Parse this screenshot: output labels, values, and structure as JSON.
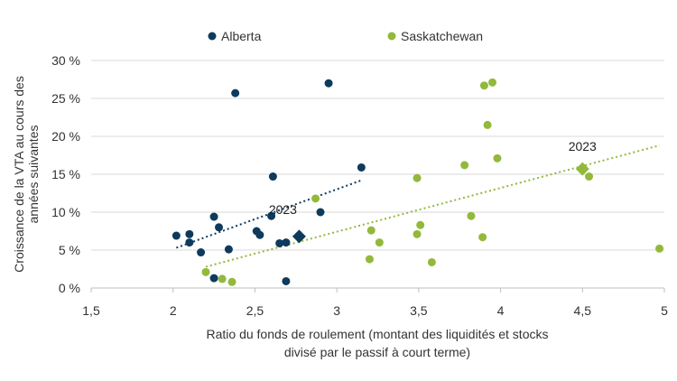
{
  "chart_data": {
    "type": "scatter",
    "xlabel_lines": [
      "Ratio du fonds de roulement (montant des liquidités et stocks",
      "divisé par le passif à court terme)"
    ],
    "ylabel_lines": [
      "Croissance de la VTA au cours des",
      "années suivantes"
    ],
    "xlim": [
      1.5,
      5
    ],
    "ylim": [
      0,
      30
    ],
    "x_ticks": [
      1.5,
      2,
      2.5,
      3,
      3.5,
      4,
      4.5,
      5
    ],
    "x_tick_labels": [
      "1,5",
      "2",
      "2,5",
      "3",
      "3,5",
      "4",
      "4,5",
      "5"
    ],
    "y_ticks": [
      0,
      5,
      10,
      15,
      20,
      25,
      30
    ],
    "y_tick_labels": [
      "0 %",
      "5 %",
      "10 %",
      "15 %",
      "20 %",
      "25 %",
      "30 %"
    ],
    "grid": "horizontal",
    "legend_position": "top",
    "series": [
      {
        "name": "Alberta",
        "color": "#0e3a5c",
        "points": [
          [
            2.02,
            6.9
          ],
          [
            2.1,
            7.1
          ],
          [
            2.1,
            6.0
          ],
          [
            2.17,
            4.7
          ],
          [
            2.25,
            9.4
          ],
          [
            2.28,
            8.0
          ],
          [
            2.25,
            1.3
          ],
          [
            2.34,
            5.1
          ],
          [
            2.38,
            25.7
          ],
          [
            2.51,
            7.5
          ],
          [
            2.53,
            7.0
          ],
          [
            2.6,
            9.5
          ],
          [
            2.61,
            14.7
          ],
          [
            2.65,
            5.9
          ],
          [
            2.69,
            6.0
          ],
          [
            2.69,
            0.9
          ],
          [
            2.9,
            10.0
          ],
          [
            2.95,
            27.0
          ],
          [
            3.15,
            15.9
          ]
        ],
        "highlight": {
          "x": 2.77,
          "y": 6.8,
          "label": "2023"
        },
        "trend": [
          [
            2.02,
            5.3
          ],
          [
            3.15,
            14.2
          ]
        ]
      },
      {
        "name": "Saskatchewan",
        "color": "#92b93b",
        "points": [
          [
            2.2,
            2.1
          ],
          [
            2.3,
            1.2
          ],
          [
            2.36,
            0.8
          ],
          [
            2.87,
            11.8
          ],
          [
            3.2,
            3.8
          ],
          [
            3.21,
            7.6
          ],
          [
            3.26,
            6.0
          ],
          [
            3.49,
            14.5
          ],
          [
            3.49,
            7.1
          ],
          [
            3.51,
            8.3
          ],
          [
            3.58,
            3.4
          ],
          [
            3.78,
            16.2
          ],
          [
            3.82,
            9.5
          ],
          [
            3.89,
            6.7
          ],
          [
            3.9,
            26.7
          ],
          [
            3.92,
            21.5
          ],
          [
            3.95,
            27.1
          ],
          [
            3.98,
            17.1
          ],
          [
            4.54,
            14.7
          ],
          [
            4.97,
            5.2
          ]
        ],
        "highlight": {
          "x": 4.5,
          "y": 15.7,
          "label": "2023"
        },
        "trend": [
          [
            2.2,
            2.8
          ],
          [
            4.97,
            18.8
          ]
        ]
      }
    ]
  }
}
